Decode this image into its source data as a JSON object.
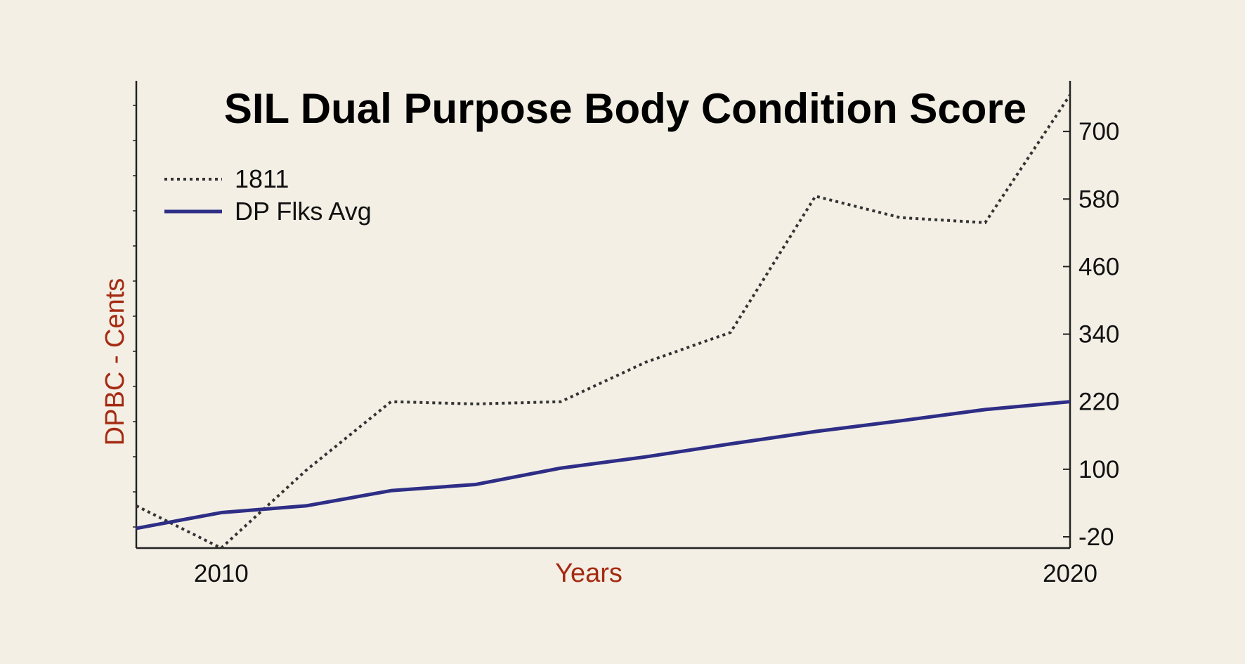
{
  "chart_data": {
    "type": "line",
    "title": "SIL Dual Purpose Body Condition Score",
    "xlabel": "Years",
    "ylabel": "DPBC - Cents",
    "x": [
      2009,
      2010,
      2011,
      2012,
      2013,
      2014,
      2015,
      2016,
      2017,
      2018,
      2019,
      2020
    ],
    "x_ticks": [
      {
        "value": 2010,
        "label": "2010"
      },
      {
        "value": 2020,
        "label": "2020"
      }
    ],
    "xlim": [
      2009,
      2020
    ],
    "y_ticks": [
      "-20",
      "100",
      "220",
      "340",
      "460",
      "580",
      "700"
    ],
    "y_tick_values": [
      -20,
      100,
      220,
      340,
      460,
      580,
      700
    ],
    "ylim": [
      -40,
      790
    ],
    "y_axis_side": "right",
    "grid": false,
    "legend_position": "top-left",
    "series": [
      {
        "name": "1811",
        "style": "dotted",
        "color": "#333333",
        "values": [
          35,
          -40,
          98,
          220,
          216,
          220,
          290,
          343,
          585,
          547,
          538,
          765
        ]
      },
      {
        "name": "DP Flks Avg",
        "style": "solid",
        "color": "#2e2e86",
        "values": [
          -5,
          23,
          35,
          62,
          73,
          102,
          122,
          145,
          167,
          186,
          206,
          220
        ]
      }
    ],
    "colors": {
      "axis_label": "#a52a12",
      "background": "#f3efe5"
    }
  }
}
